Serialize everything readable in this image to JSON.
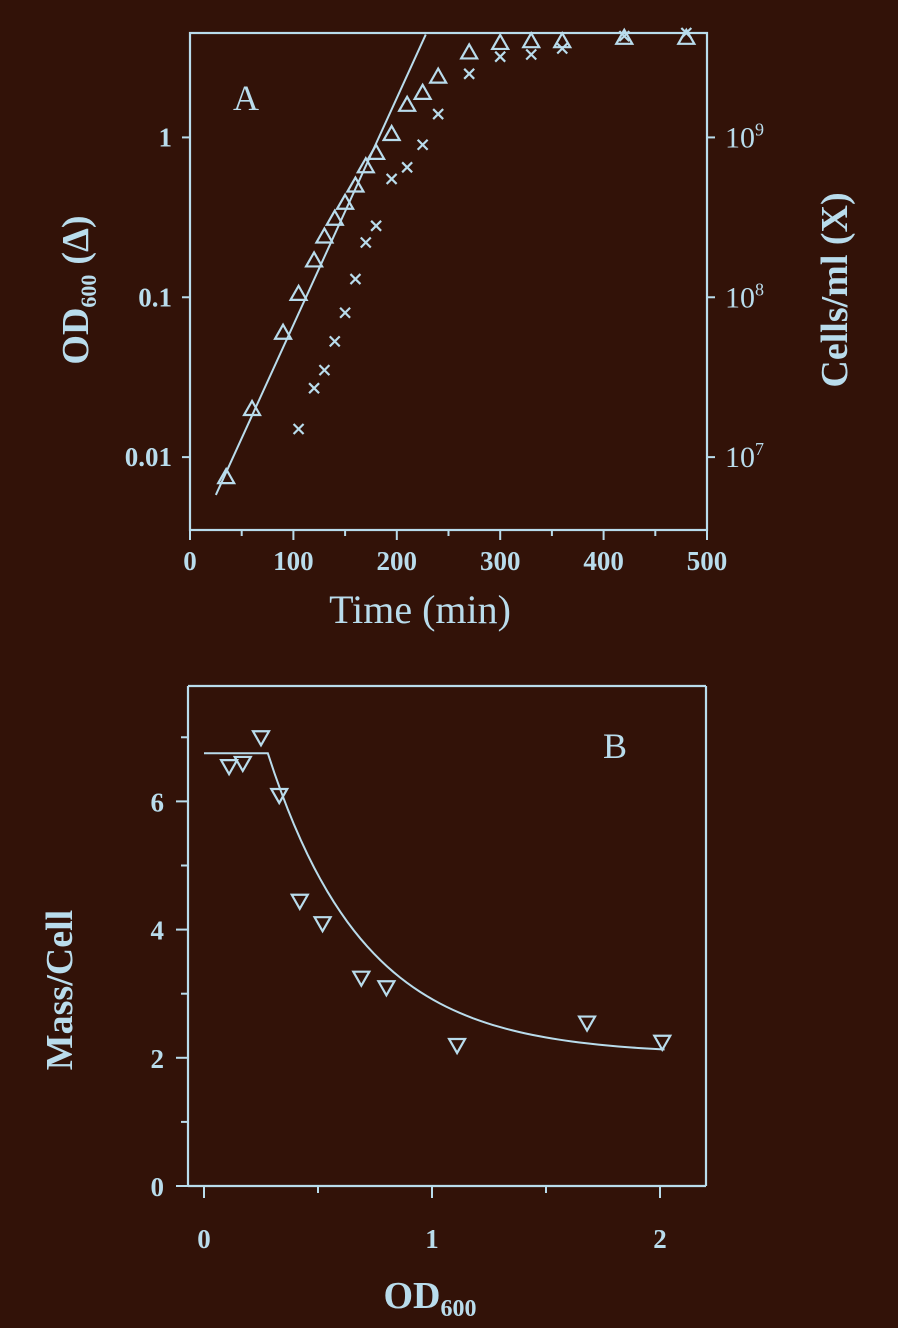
{
  "colors": {
    "background": "#321208",
    "foreground": "#b9dcec"
  },
  "chart_data": [
    {
      "panel": "A",
      "type": "scatter",
      "title": "",
      "xlabel": "Time (min)",
      "ylabel_left": {
        "main": "OD",
        "sub": "600",
        "suffix": "(Δ)"
      },
      "ylabel_right": "Cells/ml (X)",
      "xlim": [
        0,
        500
      ],
      "xticks": [
        "0",
        "100",
        "200",
        "300",
        "400",
        "500"
      ],
      "ylim_left": [
        0.0035,
        4.5
      ],
      "yscale": "log",
      "yticks_left": [
        "0.01",
        "0.1",
        "1"
      ],
      "yticks_right": [
        "10",
        "10",
        "10"
      ],
      "yticks_right_exp": [
        "7",
        "8",
        "9"
      ],
      "yticks_right_values": [
        10000000,
        100000000,
        1000000000
      ],
      "right_axis_factor": 1000000000,
      "grid": false,
      "legend": "none",
      "series": [
        {
          "marker": "triangle-up",
          "axis": "left",
          "x": [
            35,
            60,
            90,
            105,
            120,
            130,
            140,
            150,
            160,
            170,
            180,
            195,
            210,
            225,
            240,
            270,
            300,
            330,
            360,
            420,
            480
          ],
          "y": [
            0.0075,
            0.02,
            0.06,
            0.105,
            0.17,
            0.24,
            0.31,
            0.39,
            0.5,
            0.66,
            0.8,
            1.05,
            1.6,
            1.9,
            2.4,
            3.4,
            3.9,
            4.0,
            4.0,
            4.2,
            4.2
          ]
        },
        {
          "marker": "x",
          "axis": "right",
          "x": [
            105,
            120,
            130,
            140,
            150,
            160,
            170,
            180,
            195,
            210,
            225,
            240,
            270,
            300,
            330,
            360,
            420,
            480
          ],
          "y": [
            15000000,
            27000000,
            35000000,
            53000000,
            80000000,
            130000000,
            220000000,
            280000000,
            550000000,
            650000000,
            900000000,
            1400000000,
            2500000000,
            3200000000,
            3300000000,
            3600000000,
            4300000000,
            4500000000
          ]
        }
      ],
      "fit_line": {
        "x": [
          25,
          228
        ],
        "y": [
          0.0058,
          4.4
        ]
      }
    },
    {
      "panel": "B",
      "type": "scatter",
      "title": "",
      "xlabel": {
        "main": "OD",
        "sub": "600"
      },
      "ylabel": "Mass/Cell",
      "xlim": [
        0,
        2.2
      ],
      "xticks": [
        "0",
        "1",
        "2"
      ],
      "ylim": [
        0,
        7.8
      ],
      "yticks": [
        "0",
        "2",
        "4",
        "6"
      ],
      "grid": false,
      "legend": "none",
      "series": [
        {
          "marker": "triangle-down",
          "x": [
            0.11,
            0.17,
            0.25,
            0.33,
            0.42,
            0.52,
            0.69,
            0.8,
            1.11,
            1.68,
            2.01
          ],
          "y": [
            6.55,
            6.6,
            7.0,
            6.1,
            4.45,
            4.1,
            3.25,
            3.1,
            2.2,
            2.55,
            2.25
          ]
        }
      ],
      "fit_curve": {
        "plateau_high": 6.75,
        "plateau_low": 2.05,
        "break_x": 0.28,
        "end_x": 2.02,
        "decay": 2.35
      }
    }
  ]
}
